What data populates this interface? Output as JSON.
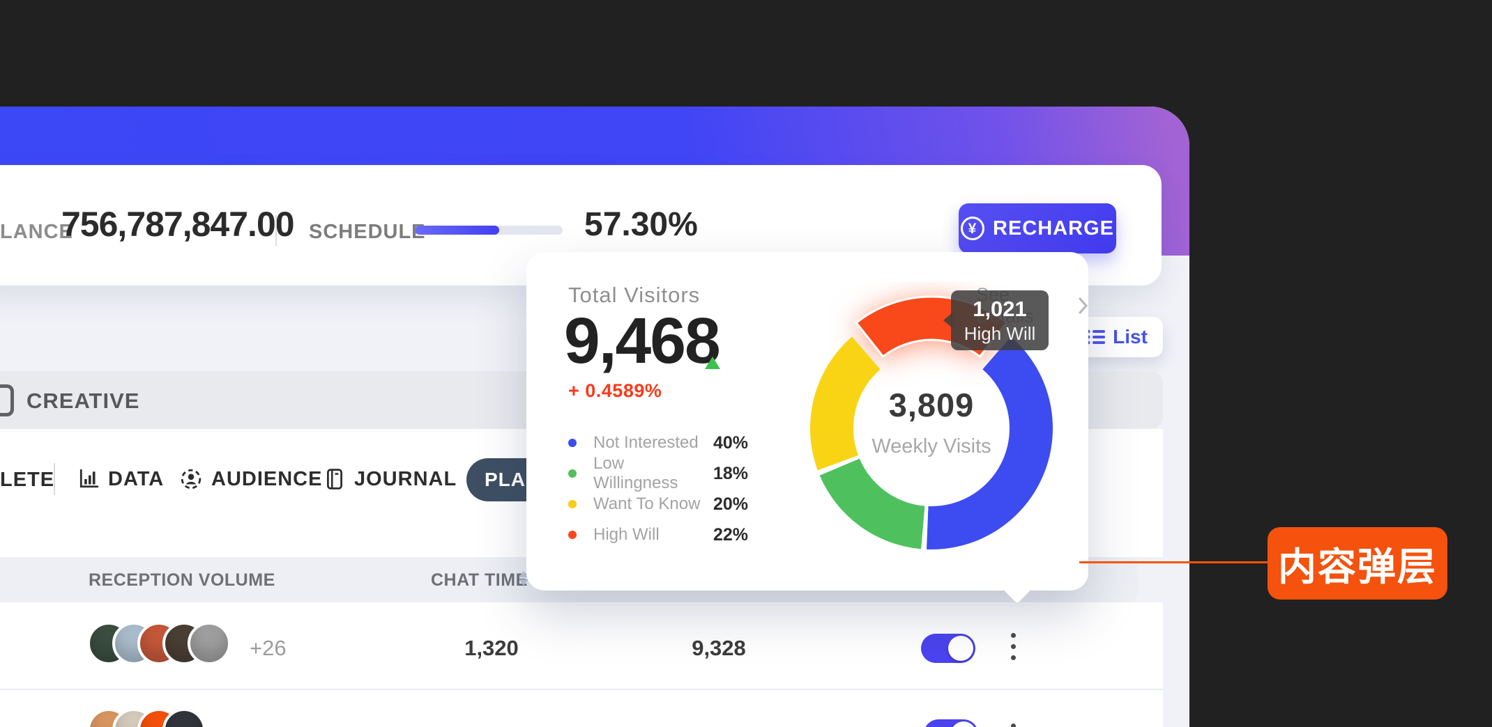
{
  "balance": {
    "label": "LANCE",
    "value": "756,787,847.00"
  },
  "schedule": {
    "label": "SCHEDULE",
    "percent_label": "57.30%",
    "progress_pct": 57.3
  },
  "recharge": {
    "label": "RECHARGE",
    "icon": "yen-circle-icon",
    "color": "#4540F0"
  },
  "list_button": {
    "label": "List",
    "icon": "list-icon",
    "color": "#4553EF"
  },
  "creative": {
    "label": "CREATIVE"
  },
  "tabs": {
    "truncated_label": "LETE",
    "items": [
      {
        "label": "DATA",
        "icon": "bar-chart-icon"
      },
      {
        "label": "AUDIENCE",
        "icon": "person-circle-icon"
      },
      {
        "label": "JOURNAL",
        "icon": "journal-icon"
      }
    ],
    "plan_label": "PLAN",
    "plan_color": "#3E4F63"
  },
  "table": {
    "columns": [
      "RECEPTION VOLUME",
      "CHAT TIME"
    ],
    "rows": [
      {
        "avatar_colors": [
          "#3a4d3f",
          "#a9bccb",
          "#c4573a",
          "#4a3f35",
          "#9e9e9e"
        ],
        "extra_count": "+26",
        "chat_time": "1,320",
        "col3_value": "9,328",
        "toggle_on": true
      },
      {
        "avatar_colors": [
          "#d8955e",
          "#d4c9bb",
          "#f4500c",
          "#31343a"
        ],
        "toggle_on": true
      }
    ]
  },
  "popup": {
    "title": "Total Visitors",
    "value": "9,468",
    "delta": "+ 0.4589%",
    "delta_color": "#FB3A1A",
    "see_details": "See Details",
    "legend": [
      {
        "name": "Not Interested",
        "pct": "40%",
        "color": "#3D4CF0"
      },
      {
        "name": "Low Willingness",
        "pct": "18%",
        "color": "#4EC15E"
      },
      {
        "name": "Want To Know",
        "pct": "20%",
        "color": "#F9CC14"
      },
      {
        "name": "High Will",
        "pct": "22%",
        "color": "#F9481A"
      }
    ],
    "tooltip": {
      "value": "1,021",
      "label": "High Will"
    }
  },
  "chart_data": {
    "type": "pie",
    "donut": true,
    "title": "Total Visitors",
    "total_visitors": "9,468",
    "delta_pct": "+ 0.4589%",
    "segments": [
      {
        "label": "Not Interested",
        "pct": 40,
        "color": "#3D4CF0"
      },
      {
        "label": "Low Willingness",
        "pct": 18,
        "color": "#4EC15E"
      },
      {
        "label": "Want To Know",
        "pct": 20,
        "color": "#F9D414"
      },
      {
        "label": "High Will",
        "pct": 22,
        "color": "#F9481A",
        "exploded": true,
        "value": "1,021"
      }
    ],
    "center": {
      "value": "3,809",
      "label": "Weekly Visits"
    },
    "legend_position": "left"
  },
  "annotation": {
    "label": "内容弹层",
    "bg": "#F4520D",
    "line_color": "#F4540E"
  }
}
